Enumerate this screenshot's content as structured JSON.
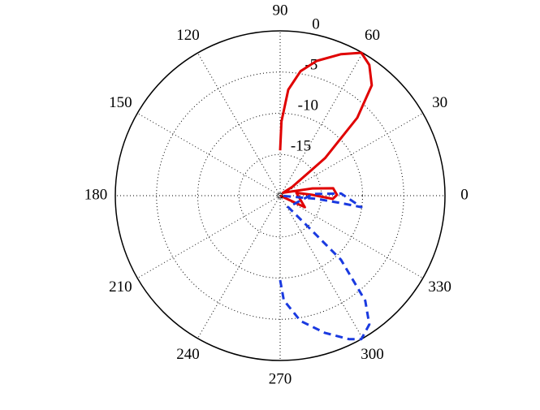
{
  "chart_data": {
    "type": "polar",
    "rlim": [
      -20,
      0
    ],
    "rticks": [
      -15,
      -10,
      -5,
      0
    ],
    "thetaticks": [
      0,
      30,
      60,
      90,
      120,
      150,
      180,
      210,
      240,
      270,
      300,
      330
    ],
    "grid": true,
    "series": [
      {
        "color": "#e00000",
        "dash": false,
        "theta": [
          90,
          89,
          85.6,
          80.7,
          74.8,
          66.7,
          60.4,
          55.7,
          50.3,
          45.3,
          39.9,
          36,
          45,
          12.7,
          7.9,
          0.8,
          -3.5,
          1.4,
          10,
          -25,
          0
        ],
        "r": [
          -14.5,
          -11.0,
          -7.1,
          -4.7,
          -3.05,
          -1.3,
          -0.06,
          -0.8,
          -2.6,
          -6.7,
          -12.9,
          -18.2,
          -19.5,
          -16.0,
          -13.5,
          -13.1,
          -13.6,
          -16.1,
          -18.0,
          -16.7,
          -20
        ]
      },
      {
        "color": "#1a3ae0",
        "dash": true,
        "theta": [
          270,
          272,
          279.2,
          288,
          295.6,
          299.5,
          304.7,
          309,
          313.5,
          311.9,
          305,
          3,
          2,
          352,
          353,
          355,
          0
        ],
        "r": [
          -9.75,
          -7.3,
          -4.6,
          -2.5,
          -0.7,
          0,
          -1.0,
          -3.6,
          -9.3,
          -14.9,
          -18.3,
          -16.0,
          -12.6,
          -10.05,
          -12.5,
          -15.5,
          -20
        ]
      }
    ]
  }
}
